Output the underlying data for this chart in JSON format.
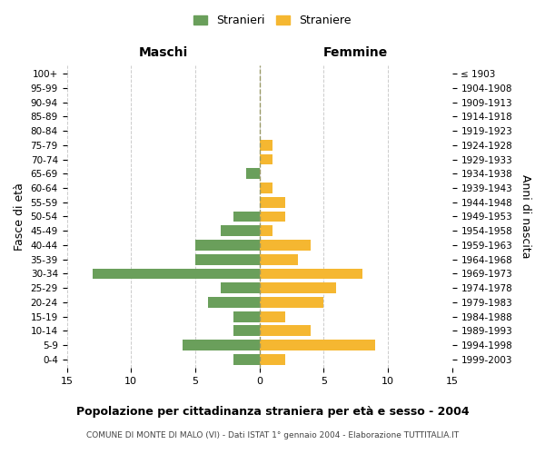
{
  "age_groups": [
    "0-4",
    "5-9",
    "10-14",
    "15-19",
    "20-24",
    "25-29",
    "30-34",
    "35-39",
    "40-44",
    "45-49",
    "50-54",
    "55-59",
    "60-64",
    "65-69",
    "70-74",
    "75-79",
    "80-84",
    "85-89",
    "90-94",
    "95-99",
    "100+"
  ],
  "birth_years": [
    "1999-2003",
    "1994-1998",
    "1989-1993",
    "1984-1988",
    "1979-1983",
    "1974-1978",
    "1969-1973",
    "1964-1968",
    "1959-1963",
    "1954-1958",
    "1949-1953",
    "1944-1948",
    "1939-1943",
    "1934-1938",
    "1929-1933",
    "1924-1928",
    "1919-1923",
    "1914-1918",
    "1909-1913",
    "1904-1908",
    "≤ 1903"
  ],
  "maschi": [
    2,
    6,
    2,
    2,
    4,
    3,
    13,
    5,
    5,
    3,
    2,
    0,
    0,
    1,
    0,
    0,
    0,
    0,
    0,
    0,
    0
  ],
  "femmine": [
    2,
    9,
    4,
    2,
    5,
    6,
    8,
    3,
    4,
    1,
    2,
    2,
    1,
    0,
    1,
    1,
    0,
    0,
    0,
    0,
    0
  ],
  "maschi_color": "#6a9f5b",
  "femmine_color": "#f5b731",
  "title": "Popolazione per cittadinanza straniera per età e sesso - 2004",
  "subtitle": "COMUNE DI MONTE DI MALO (VI) - Dati ISTAT 1° gennaio 2004 - Elaborazione TUTTITALIA.IT",
  "xlabel_left": "Maschi",
  "xlabel_right": "Femmine",
  "ylabel_left": "Fasce di età",
  "ylabel_right": "Anni di nascita",
  "legend_stranieri": "Stranieri",
  "legend_straniere": "Straniere",
  "xlim": 15,
  "background_color": "#ffffff",
  "grid_color": "#cccccc"
}
